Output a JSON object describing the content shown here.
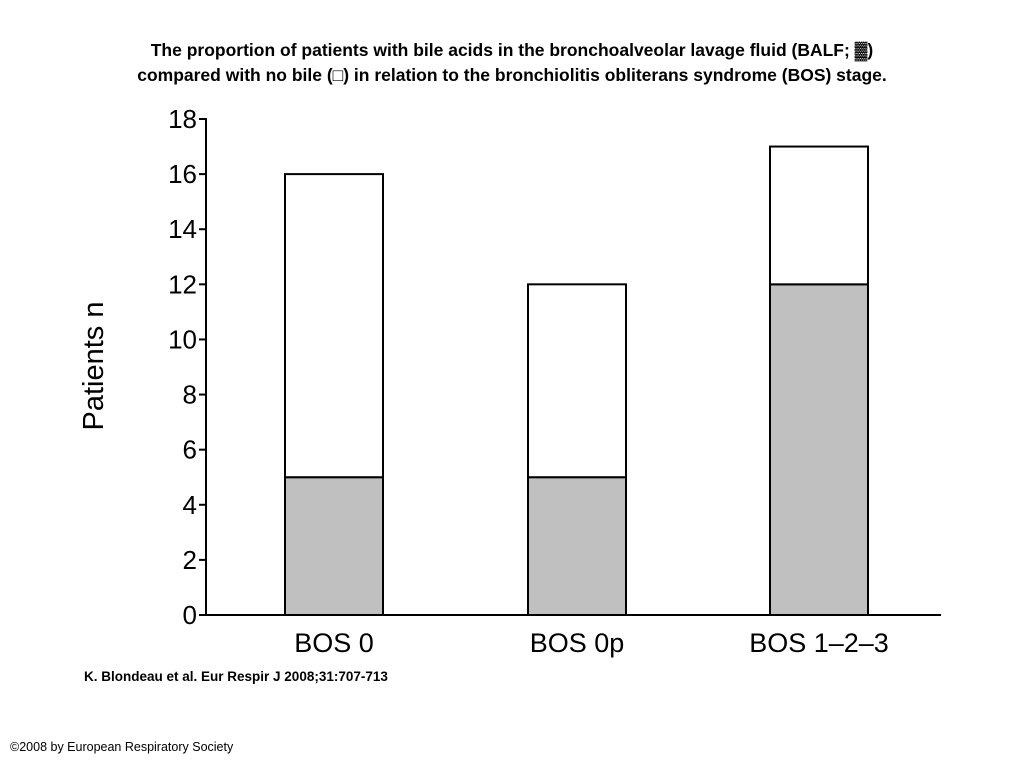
{
  "title": {
    "line1": "The proportion of patients with bile acids in the bronchoalveolar lavage fluid (BALF; ▓)",
    "line2": "compared with no bile (□) in relation to the bronchiolitis obliterans syndrome (BOS) stage."
  },
  "chart_data": {
    "type": "bar",
    "stacked": true,
    "categories": [
      "BOS 0",
      "BOS 0p",
      "BOS 1–2–3"
    ],
    "series": [
      {
        "name": "bile acids in BALF",
        "values": [
          5,
          5,
          12
        ],
        "color": "#c0c0c0"
      },
      {
        "name": "no bile",
        "values": [
          11,
          7,
          5
        ],
        "color": "#ffffff"
      }
    ],
    "totals": [
      16,
      12,
      17
    ],
    "ylabel": "Patients n",
    "xlabel": "",
    "ylim": [
      0,
      18
    ],
    "yticks": [
      0,
      2,
      4,
      6,
      8,
      10,
      12,
      14,
      16,
      18
    ],
    "grid": false
  },
  "citation": "K. Blondeau et al. Eur Respir J 2008;31:707-713",
  "copyright": "©2008 by European Respiratory Society"
}
